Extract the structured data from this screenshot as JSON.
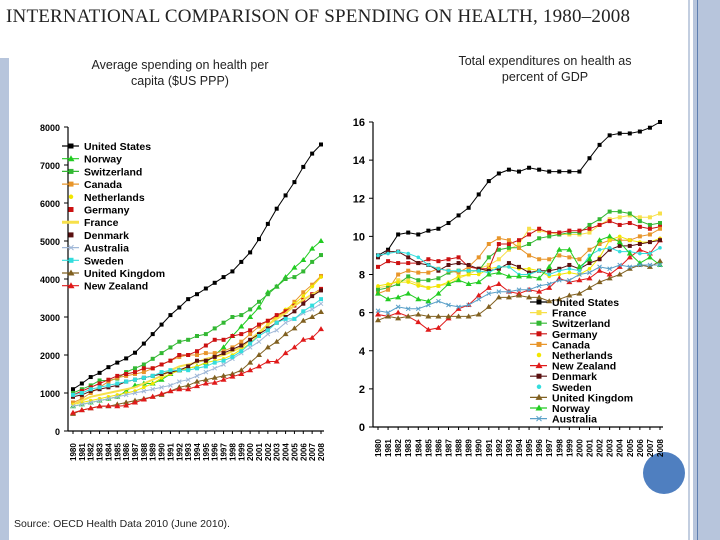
{
  "slide": {
    "title": "INTERNATIONAL COMPARISON OF SPENDING ON HEALTH, 1980–2008",
    "source": "Source: OECD Health Data 2010 (June 2010)."
  },
  "chart_data": [
    {
      "type": "line",
      "title": "Average spending on health per capita ($US PPP)",
      "x": [
        1980,
        1981,
        1982,
        1983,
        1984,
        1985,
        1986,
        1987,
        1988,
        1989,
        1990,
        1991,
        1992,
        1993,
        1994,
        1995,
        1996,
        1997,
        1998,
        1999,
        2000,
        2001,
        2002,
        2003,
        2004,
        2005,
        2006,
        2007,
        2008
      ],
      "ylim": [
        0,
        8000
      ],
      "yticks": [
        0,
        1000,
        2000,
        3000,
        4000,
        5000,
        6000,
        7000,
        8000
      ],
      "legend": "top-left",
      "grid": false,
      "series": [
        {
          "name": "United States",
          "color": "#000000",
          "marker": "square",
          "values": [
            1100,
            1250,
            1420,
            1530,
            1680,
            1800,
            1910,
            2060,
            2300,
            2550,
            2800,
            3050,
            3250,
            3470,
            3600,
            3750,
            3900,
            4050,
            4200,
            4450,
            4700,
            5050,
            5450,
            5850,
            6200,
            6550,
            6950,
            7300,
            7540
          ]
        },
        {
          "name": "Norway",
          "color": "#22cc22",
          "marker": "triangle",
          "values": [
            650,
            700,
            750,
            800,
            850,
            900,
            1050,
            1200,
            1250,
            1250,
            1350,
            1500,
            1600,
            1650,
            1700,
            1800,
            2000,
            2200,
            2500,
            2750,
            3000,
            3250,
            3650,
            3800,
            4050,
            4300,
            4500,
            4800,
            5000
          ]
        },
        {
          "name": "Switzerland",
          "color": "#33b833",
          "marker": "square",
          "values": [
            1000,
            1100,
            1200,
            1330,
            1330,
            1380,
            1550,
            1650,
            1750,
            1900,
            2050,
            2200,
            2350,
            2400,
            2500,
            2550,
            2700,
            2850,
            3000,
            3050,
            3200,
            3400,
            3600,
            3800,
            4000,
            4050,
            4200,
            4450,
            4630
          ]
        },
        {
          "name": "Canada",
          "color": "#e8952a",
          "marker": "square",
          "values": [
            750,
            850,
            1000,
            1150,
            1300,
            1400,
            1450,
            1500,
            1550,
            1650,
            1750,
            1850,
            1950,
            2000,
            2000,
            2050,
            2050,
            2100,
            2200,
            2350,
            2550,
            2750,
            2900,
            3000,
            3150,
            3400,
            3650,
            3850,
            4080
          ]
        },
        {
          "name": "Netherlands",
          "color": "#f2e600",
          "marker": "dot",
          "values": [
            700,
            750,
            800,
            850,
            900,
            950,
            1000,
            1050,
            1150,
            1250,
            1400,
            1500,
            1600,
            1650,
            1700,
            1800,
            1850,
            1900,
            2000,
            2150,
            2300,
            2550,
            2800,
            3000,
            3200,
            3350,
            3550,
            3800,
            4050
          ]
        },
        {
          "name": "Germany",
          "color": "#cc1111",
          "marker": "square",
          "values": [
            950,
            1050,
            1150,
            1250,
            1350,
            1450,
            1500,
            1550,
            1650,
            1650,
            1750,
            1850,
            2000,
            2000,
            2100,
            2250,
            2400,
            2400,
            2500,
            2550,
            2650,
            2800,
            2900,
            3050,
            3150,
            3300,
            3450,
            3600,
            3740
          ]
        },
        {
          "name": "France",
          "color": "#f7e04a",
          "marker": "none",
          "values": [
            700,
            800,
            900,
            950,
            1000,
            1050,
            1100,
            1150,
            1250,
            1350,
            1450,
            1600,
            1700,
            1750,
            1800,
            1900,
            1950,
            2000,
            2100,
            2200,
            2400,
            2600,
            2800,
            2950,
            3100,
            3300,
            3450,
            3600,
            3700
          ]
        },
        {
          "name": "Denmark",
          "color": "#5a1010",
          "marker": "square",
          "values": [
            900,
            950,
            1050,
            1100,
            1150,
            1200,
            1300,
            1350,
            1400,
            1450,
            1500,
            1550,
            1600,
            1700,
            1850,
            1850,
            1950,
            2050,
            2150,
            2250,
            2400,
            2550,
            2700,
            2850,
            3000,
            3150,
            3350,
            3550,
            3700
          ]
        },
        {
          "name": "Australia",
          "color": "#a0b8d8",
          "marker": "x",
          "values": [
            650,
            700,
            750,
            800,
            850,
            900,
            950,
            1000,
            1050,
            1100,
            1150,
            1200,
            1300,
            1350,
            1450,
            1550,
            1650,
            1750,
            1900,
            2050,
            2200,
            2350,
            2550,
            2650,
            2850,
            2950,
            3100,
            3200,
            3350
          ]
        },
        {
          "name": "Sweden",
          "color": "#33dddd",
          "marker": "square",
          "values": [
            950,
            1000,
            1100,
            1150,
            1200,
            1250,
            1300,
            1350,
            1400,
            1450,
            1550,
            1600,
            1600,
            1600,
            1650,
            1700,
            1800,
            1850,
            1950,
            2100,
            2300,
            2500,
            2650,
            2850,
            2950,
            2950,
            3150,
            3300,
            3470
          ]
        },
        {
          "name": "United Kingdom",
          "color": "#806020",
          "marker": "triangle",
          "values": [
            450,
            550,
            600,
            650,
            650,
            700,
            750,
            800,
            850,
            900,
            950,
            1050,
            1150,
            1200,
            1300,
            1350,
            1400,
            1450,
            1500,
            1600,
            1800,
            2000,
            2200,
            2350,
            2550,
            2700,
            2900,
            3000,
            3130
          ]
        },
        {
          "name": "New Zealand",
          "color": "#e01a1a",
          "marker": "triangle",
          "values": [
            480,
            550,
            600,
            650,
            660,
            650,
            670,
            750,
            830,
            900,
            980,
            1050,
            1100,
            1100,
            1180,
            1250,
            1270,
            1350,
            1430,
            1500,
            1600,
            1700,
            1830,
            1830,
            2050,
            2200,
            2400,
            2450,
            2680
          ]
        }
      ]
    },
    {
      "type": "line",
      "title": "Total expenditures on health as percent of GDP",
      "x": [
        1980,
        1981,
        1982,
        1983,
        1984,
        1985,
        1986,
        1987,
        1988,
        1989,
        1990,
        1991,
        1992,
        1993,
        1994,
        1995,
        1996,
        1997,
        1998,
        1999,
        2000,
        2001,
        2002,
        2003,
        2004,
        2005,
        2006,
        2007,
        2008
      ],
      "ylim": [
        0,
        16
      ],
      "yticks": [
        0,
        2,
        4,
        6,
        8,
        10,
        12,
        14,
        16
      ],
      "legend": "bottom-right",
      "grid": false,
      "series": [
        {
          "name": "United States",
          "color": "#000000",
          "marker": "square",
          "values": [
            9.0,
            9.3,
            10.1,
            10.2,
            10.1,
            10.3,
            10.4,
            10.7,
            11.1,
            11.5,
            12.2,
            12.9,
            13.3,
            13.5,
            13.4,
            13.6,
            13.5,
            13.4,
            13.4,
            13.4,
            13.4,
            14.1,
            14.8,
            15.3,
            15.4,
            15.4,
            15.5,
            15.7,
            16.0
          ]
        },
        {
          "name": "France",
          "color": "#f7e04a",
          "marker": "square",
          "values": [
            7.3,
            7.4,
            7.7,
            7.7,
            7.5,
            7.3,
            7.4,
            7.5,
            7.8,
            8.0,
            8.3,
            8.5,
            8.8,
            9.3,
            9.6,
            10.4,
            10.3,
            10.2,
            10.1,
            10.1,
            10.1,
            10.2,
            10.6,
            10.9,
            11.0,
            11.1,
            11.0,
            11.0,
            11.2
          ]
        },
        {
          "name": "Switzerland",
          "color": "#33b833",
          "marker": "square",
          "values": [
            7.2,
            7.3,
            7.5,
            7.9,
            7.7,
            7.7,
            7.8,
            8.1,
            8.2,
            8.2,
            8.2,
            8.9,
            9.3,
            9.4,
            9.4,
            9.6,
            9.9,
            10.0,
            10.1,
            10.2,
            10.2,
            10.6,
            10.9,
            11.3,
            11.3,
            11.2,
            10.8,
            10.6,
            10.7
          ]
        },
        {
          "name": "Germany",
          "color": "#cc1111",
          "marker": "square",
          "values": [
            8.4,
            8.7,
            8.6,
            8.6,
            8.6,
            8.8,
            8.7,
            8.8,
            8.9,
            8.4,
            8.3,
            8.3,
            9.6,
            9.6,
            9.8,
            10.1,
            10.4,
            10.2,
            10.2,
            10.3,
            10.3,
            10.4,
            10.6,
            10.8,
            10.6,
            10.7,
            10.5,
            10.4,
            10.5
          ]
        },
        {
          "name": "Canada",
          "color": "#e8952a",
          "marker": "square",
          "values": [
            7.0,
            7.2,
            8.0,
            8.2,
            8.1,
            8.1,
            8.3,
            8.2,
            8.1,
            8.4,
            8.9,
            9.6,
            9.9,
            9.8,
            9.4,
            9.0,
            8.8,
            8.8,
            9.0,
            8.9,
            8.8,
            9.3,
            9.6,
            9.8,
            9.8,
            9.8,
            10.0,
            10.1,
            10.4
          ]
        },
        {
          "name": "Netherlands",
          "color": "#f2e600",
          "marker": "dot",
          "values": [
            7.4,
            7.5,
            7.6,
            7.6,
            7.4,
            7.3,
            7.4,
            7.6,
            7.9,
            8.0,
            8.0,
            8.3,
            8.4,
            8.4,
            8.3,
            8.3,
            8.2,
            7.9,
            8.0,
            8.1,
            8.0,
            8.3,
            8.9,
            9.8,
            10.0,
            9.8,
            9.7,
            9.7,
            9.9
          ]
        },
        {
          "name": "New Zealand",
          "color": "#e01a1a",
          "marker": "triangle",
          "values": [
            5.9,
            5.8,
            6.0,
            5.8,
            5.5,
            5.1,
            5.2,
            5.7,
            6.2,
            6.4,
            6.9,
            7.3,
            7.5,
            7.1,
            7.0,
            7.2,
            7.1,
            7.3,
            7.8,
            7.6,
            7.7,
            7.8,
            8.2,
            8.0,
            8.4,
            8.9,
            9.3,
            9.1,
            9.8
          ]
        },
        {
          "name": "Denmark",
          "color": "#5a1010",
          "marker": "square",
          "values": [
            8.9,
            9.2,
            9.2,
            8.9,
            8.6,
            8.5,
            8.2,
            8.5,
            8.6,
            8.5,
            8.3,
            8.2,
            8.3,
            8.6,
            8.4,
            8.1,
            8.2,
            8.2,
            8.3,
            8.5,
            8.3,
            8.6,
            8.8,
            9.3,
            9.5,
            9.5,
            9.6,
            9.7,
            9.8
          ]
        },
        {
          "name": "Sweden",
          "color": "#33dddd",
          "marker": "dot",
          "values": [
            9.0,
            9.1,
            9.2,
            9.1,
            8.9,
            8.5,
            8.3,
            8.2,
            8.2,
            8.2,
            8.2,
            8.1,
            8.4,
            8.4,
            8.0,
            8.0,
            8.2,
            8.0,
            8.2,
            8.3,
            8.2,
            9.0,
            9.3,
            9.4,
            9.2,
            9.2,
            9.1,
            9.1,
            9.4
          ]
        },
        {
          "name": "United Kingdom",
          "color": "#806020",
          "marker": "triangle",
          "values": [
            5.6,
            5.8,
            5.7,
            5.8,
            5.9,
            5.8,
            5.8,
            5.8,
            5.8,
            5.8,
            5.9,
            6.3,
            6.8,
            6.8,
            6.9,
            6.8,
            6.8,
            6.6,
            6.7,
            6.9,
            7.0,
            7.3,
            7.6,
            7.8,
            8.0,
            8.3,
            8.5,
            8.4,
            8.7
          ]
        },
        {
          "name": "Norway",
          "color": "#22cc22",
          "marker": "triangle",
          "values": [
            7.0,
            6.7,
            6.8,
            7.0,
            6.7,
            6.6,
            7.0,
            7.5,
            7.7,
            7.5,
            7.6,
            8.0,
            8.1,
            7.9,
            7.9,
            7.9,
            7.8,
            8.4,
            9.3,
            9.3,
            8.4,
            8.8,
            9.8,
            10.0,
            9.7,
            9.1,
            8.6,
            8.9,
            8.5
          ]
        },
        {
          "name": "Australia",
          "color": "#5aa0c8",
          "marker": "x",
          "values": [
            6.1,
            6.0,
            6.3,
            6.2,
            6.2,
            6.4,
            6.6,
            6.4,
            6.3,
            6.4,
            6.7,
            7.0,
            7.1,
            7.1,
            7.2,
            7.2,
            7.4,
            7.5,
            7.7,
            7.7,
            8.0,
            8.1,
            8.4,
            8.3,
            8.5,
            8.4,
            8.5,
            8.5,
            8.5
          ]
        }
      ]
    }
  ]
}
